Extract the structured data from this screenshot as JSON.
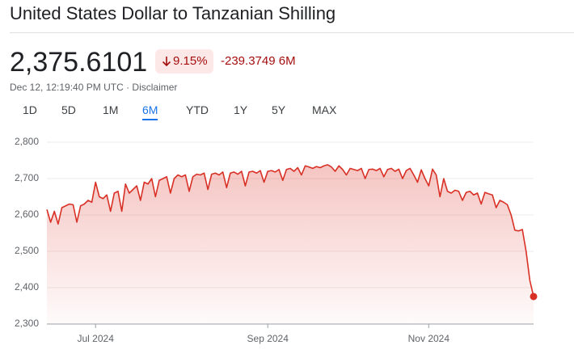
{
  "header": {
    "title": "United States Dollar to Tanzanian Shilling",
    "price": "2,375.6101",
    "change_percent": "9.15%",
    "change": "-239.3749",
    "period": "6M",
    "timestamp": "Dec 12, 12:19:40 PM UTC",
    "disclaimer": "Disclaimer"
  },
  "tabs": {
    "items": [
      "1D",
      "5D",
      "1M",
      "6M",
      "YTD",
      "1Y",
      "5Y",
      "MAX"
    ],
    "active": 3
  },
  "chart_data": {
    "type": "line",
    "color": "#d93025",
    "grid": true,
    "ylim": [
      2300,
      2800
    ],
    "yticks": [
      {
        "value": 2300,
        "label": "2,300"
      },
      {
        "value": 2400,
        "label": "2,400"
      },
      {
        "value": 2500,
        "label": "2,500"
      },
      {
        "value": 2600,
        "label": "2,600"
      },
      {
        "value": 2700,
        "label": "2,700"
      },
      {
        "value": 2800,
        "label": "2,800"
      }
    ],
    "categories": [
      null,
      null,
      null,
      null,
      null,
      null,
      null,
      null,
      null,
      null,
      null,
      null,
      null,
      "Jul 2024",
      null,
      null,
      null,
      null,
      null,
      null,
      null,
      null,
      null,
      null,
      null,
      null,
      null,
      null,
      null,
      null,
      null,
      null,
      null,
      null,
      null,
      null,
      null,
      null,
      null,
      null,
      null,
      null,
      null,
      null,
      null,
      null,
      null,
      null,
      null,
      null,
      null,
      null,
      null,
      null,
      null,
      null,
      null,
      null,
      null,
      "Sep 2024",
      null,
      null,
      null,
      null,
      null,
      null,
      null,
      null,
      null,
      null,
      null,
      null,
      null,
      null,
      null,
      null,
      null,
      null,
      null,
      null,
      null,
      null,
      null,
      null,
      null,
      null,
      null,
      null,
      null,
      null,
      null,
      null,
      null,
      null,
      null,
      null,
      null,
      null,
      null,
      null,
      null,
      null,
      "Nov 2024",
      null,
      null,
      null,
      null,
      null,
      null,
      null,
      null,
      null,
      null,
      null,
      null,
      null,
      null,
      null,
      null,
      null,
      null,
      null,
      null,
      null,
      null,
      null,
      null,
      null,
      null,
      null,
      null
    ],
    "values": [
      2615,
      2580,
      2610,
      2575,
      2620,
      2625,
      2630,
      2628,
      2580,
      2625,
      2630,
      2640,
      2635,
      2690,
      2650,
      2645,
      2655,
      2610,
      2660,
      2665,
      2610,
      2685,
      2660,
      2670,
      2680,
      2640,
      2690,
      2685,
      2700,
      2650,
      2695,
      2700,
      2705,
      2660,
      2700,
      2710,
      2705,
      2710,
      2665,
      2705,
      2712,
      2710,
      2715,
      2670,
      2712,
      2715,
      2710,
      2718,
      2675,
      2715,
      2718,
      2712,
      2720,
      2680,
      2718,
      2720,
      2715,
      2722,
      2690,
      2720,
      2722,
      2718,
      2725,
      2695,
      2725,
      2728,
      2720,
      2730,
      2710,
      2735,
      2732,
      2728,
      2733,
      2730,
      2735,
      2738,
      2732,
      2720,
      2735,
      2725,
      2710,
      2728,
      2725,
      2722,
      2728,
      2700,
      2725,
      2726,
      2722,
      2728,
      2705,
      2725,
      2728,
      2720,
      2726,
      2700,
      2722,
      2728,
      2710,
      2690,
      2724,
      2700,
      2680,
      2726,
      2710,
      2650,
      2700,
      2665,
      2660,
      2668,
      2665,
      2640,
      2662,
      2665,
      2655,
      2660,
      2630,
      2662,
      2658,
      2655,
      2620,
      2640,
      2635,
      2628,
      2600,
      2558,
      2556,
      2560,
      2500,
      2420,
      2375.6101
    ]
  }
}
